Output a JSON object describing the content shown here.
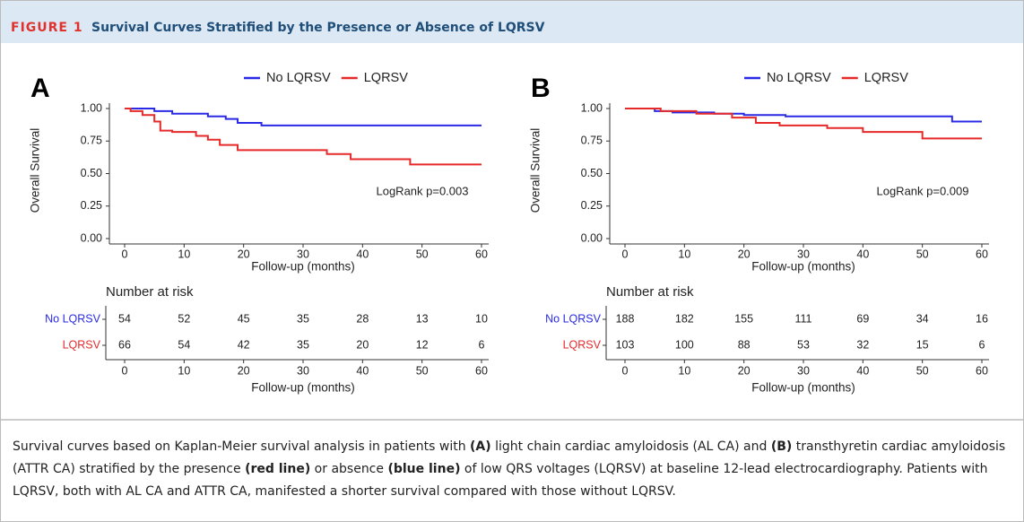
{
  "figure": {
    "label": "FIGURE 1",
    "title": "Survival Curves Stratified by the Presence or Absence of LQRSV"
  },
  "chart_data": [
    {
      "type": "line",
      "step": true,
      "panel": "A",
      "ylabel": "Overall Survival",
      "x_label": "Follow-up (months)",
      "xlim": [
        0,
        60
      ],
      "xticks": [
        0,
        10,
        20,
        30,
        40,
        50,
        60
      ],
      "ylim": [
        0,
        1
      ],
      "yticks": [
        {
          "value": 0,
          "label": "0.00"
        },
        {
          "value": 0.25,
          "label": "0.25"
        },
        {
          "value": 0.5,
          "label": "0.50"
        },
        {
          "value": 0.75,
          "label": "0.75"
        },
        {
          "value": 1,
          "label": "1.00"
        }
      ],
      "annotation": "LogRank p=0.003",
      "series": [
        {
          "name": "No LQRSV",
          "color": "#2a2ae6",
          "x": [
            0,
            5,
            5,
            8,
            8,
            14,
            14,
            17,
            17,
            19,
            19,
            23,
            23,
            60
          ],
          "values": [
            1,
            1,
            0.98,
            0.98,
            0.96,
            0.96,
            0.94,
            0.94,
            0.92,
            0.92,
            0.89,
            0.89,
            0.87,
            0.87
          ]
        },
        {
          "name": "LQRSV",
          "color": "#e62a2a",
          "x": [
            0,
            1,
            1,
            3,
            3,
            5,
            5,
            6,
            6,
            8,
            8,
            12,
            12,
            14,
            14,
            16,
            16,
            19,
            19,
            34,
            34,
            38,
            38,
            48,
            48,
            60
          ],
          "values": [
            1,
            1,
            0.98,
            0.98,
            0.95,
            0.95,
            0.9,
            0.9,
            0.83,
            0.83,
            0.82,
            0.82,
            0.79,
            0.79,
            0.76,
            0.76,
            0.72,
            0.72,
            0.68,
            0.68,
            0.65,
            0.65,
            0.61,
            0.61,
            0.57,
            0.57
          ]
        }
      ],
      "risk_table": {
        "title": "Number at risk",
        "rows": [
          {
            "name": "No LQRSV",
            "color": "#2a2ae6",
            "values": [
              54,
              52,
              45,
              35,
              28,
              13,
              10
            ]
          },
          {
            "name": "LQRSV",
            "color": "#e62a2a",
            "values": [
              66,
              54,
              42,
              35,
              20,
              12,
              6
            ]
          }
        ]
      }
    },
    {
      "type": "line",
      "step": true,
      "panel": "B",
      "ylabel": "Overall Survival",
      "x_label": "Follow-up (months)",
      "xlim": [
        0,
        60
      ],
      "xticks": [
        0,
        10,
        20,
        30,
        40,
        50,
        60
      ],
      "ylim": [
        0,
        1
      ],
      "yticks": [
        {
          "value": 0,
          "label": "0.00"
        },
        {
          "value": 0.25,
          "label": "0.25"
        },
        {
          "value": 0.5,
          "label": "0.50"
        },
        {
          "value": 0.75,
          "label": "0.75"
        },
        {
          "value": 1,
          "label": "1.00"
        }
      ],
      "annotation": "LogRank p=0.009",
      "series": [
        {
          "name": "No LQRSV",
          "color": "#2a2ae6",
          "x": [
            0,
            5,
            5,
            8,
            8,
            15,
            15,
            20,
            20,
            27,
            27,
            35,
            35,
            55,
            55,
            60
          ],
          "values": [
            1,
            1,
            0.98,
            0.98,
            0.97,
            0.97,
            0.96,
            0.96,
            0.95,
            0.95,
            0.94,
            0.94,
            0.94,
            0.94,
            0.9,
            0.9
          ]
        },
        {
          "name": "LQRSV",
          "color": "#e62a2a",
          "x": [
            0,
            6,
            6,
            12,
            12,
            18,
            18,
            22,
            22,
            26,
            26,
            34,
            34,
            40,
            40,
            50,
            50,
            60
          ],
          "values": [
            1,
            1,
            0.98,
            0.98,
            0.96,
            0.96,
            0.93,
            0.93,
            0.89,
            0.89,
            0.87,
            0.87,
            0.85,
            0.85,
            0.82,
            0.82,
            0.77,
            0.77
          ]
        }
      ],
      "risk_table": {
        "title": "Number at risk",
        "rows": [
          {
            "name": "No LQRSV",
            "color": "#2a2ae6",
            "values": [
              188,
              182,
              155,
              111,
              69,
              34,
              16
            ]
          },
          {
            "name": "LQRSV",
            "color": "#e62a2a",
            "values": [
              103,
              100,
              88,
              53,
              32,
              15,
              6
            ]
          }
        ]
      }
    }
  ],
  "caption": [
    "Survival curves based on Kaplan-Meier survival analysis in patients with ",
    "(A)",
    " light chain cardiac amyloidosis (AL CA) and ",
    "(B)",
    " transthyretin cardiac amyloidosis (ATTR CA) stratified by the presence ",
    "(red line)",
    " or absence ",
    "(blue line)",
    " of low QRS voltages (LQRSV) at baseline 12-lead electrocardiography. Patients with LQRSV, both with AL CA and ATTR CA, manifested a shorter survival compared with those without LQRSV."
  ]
}
